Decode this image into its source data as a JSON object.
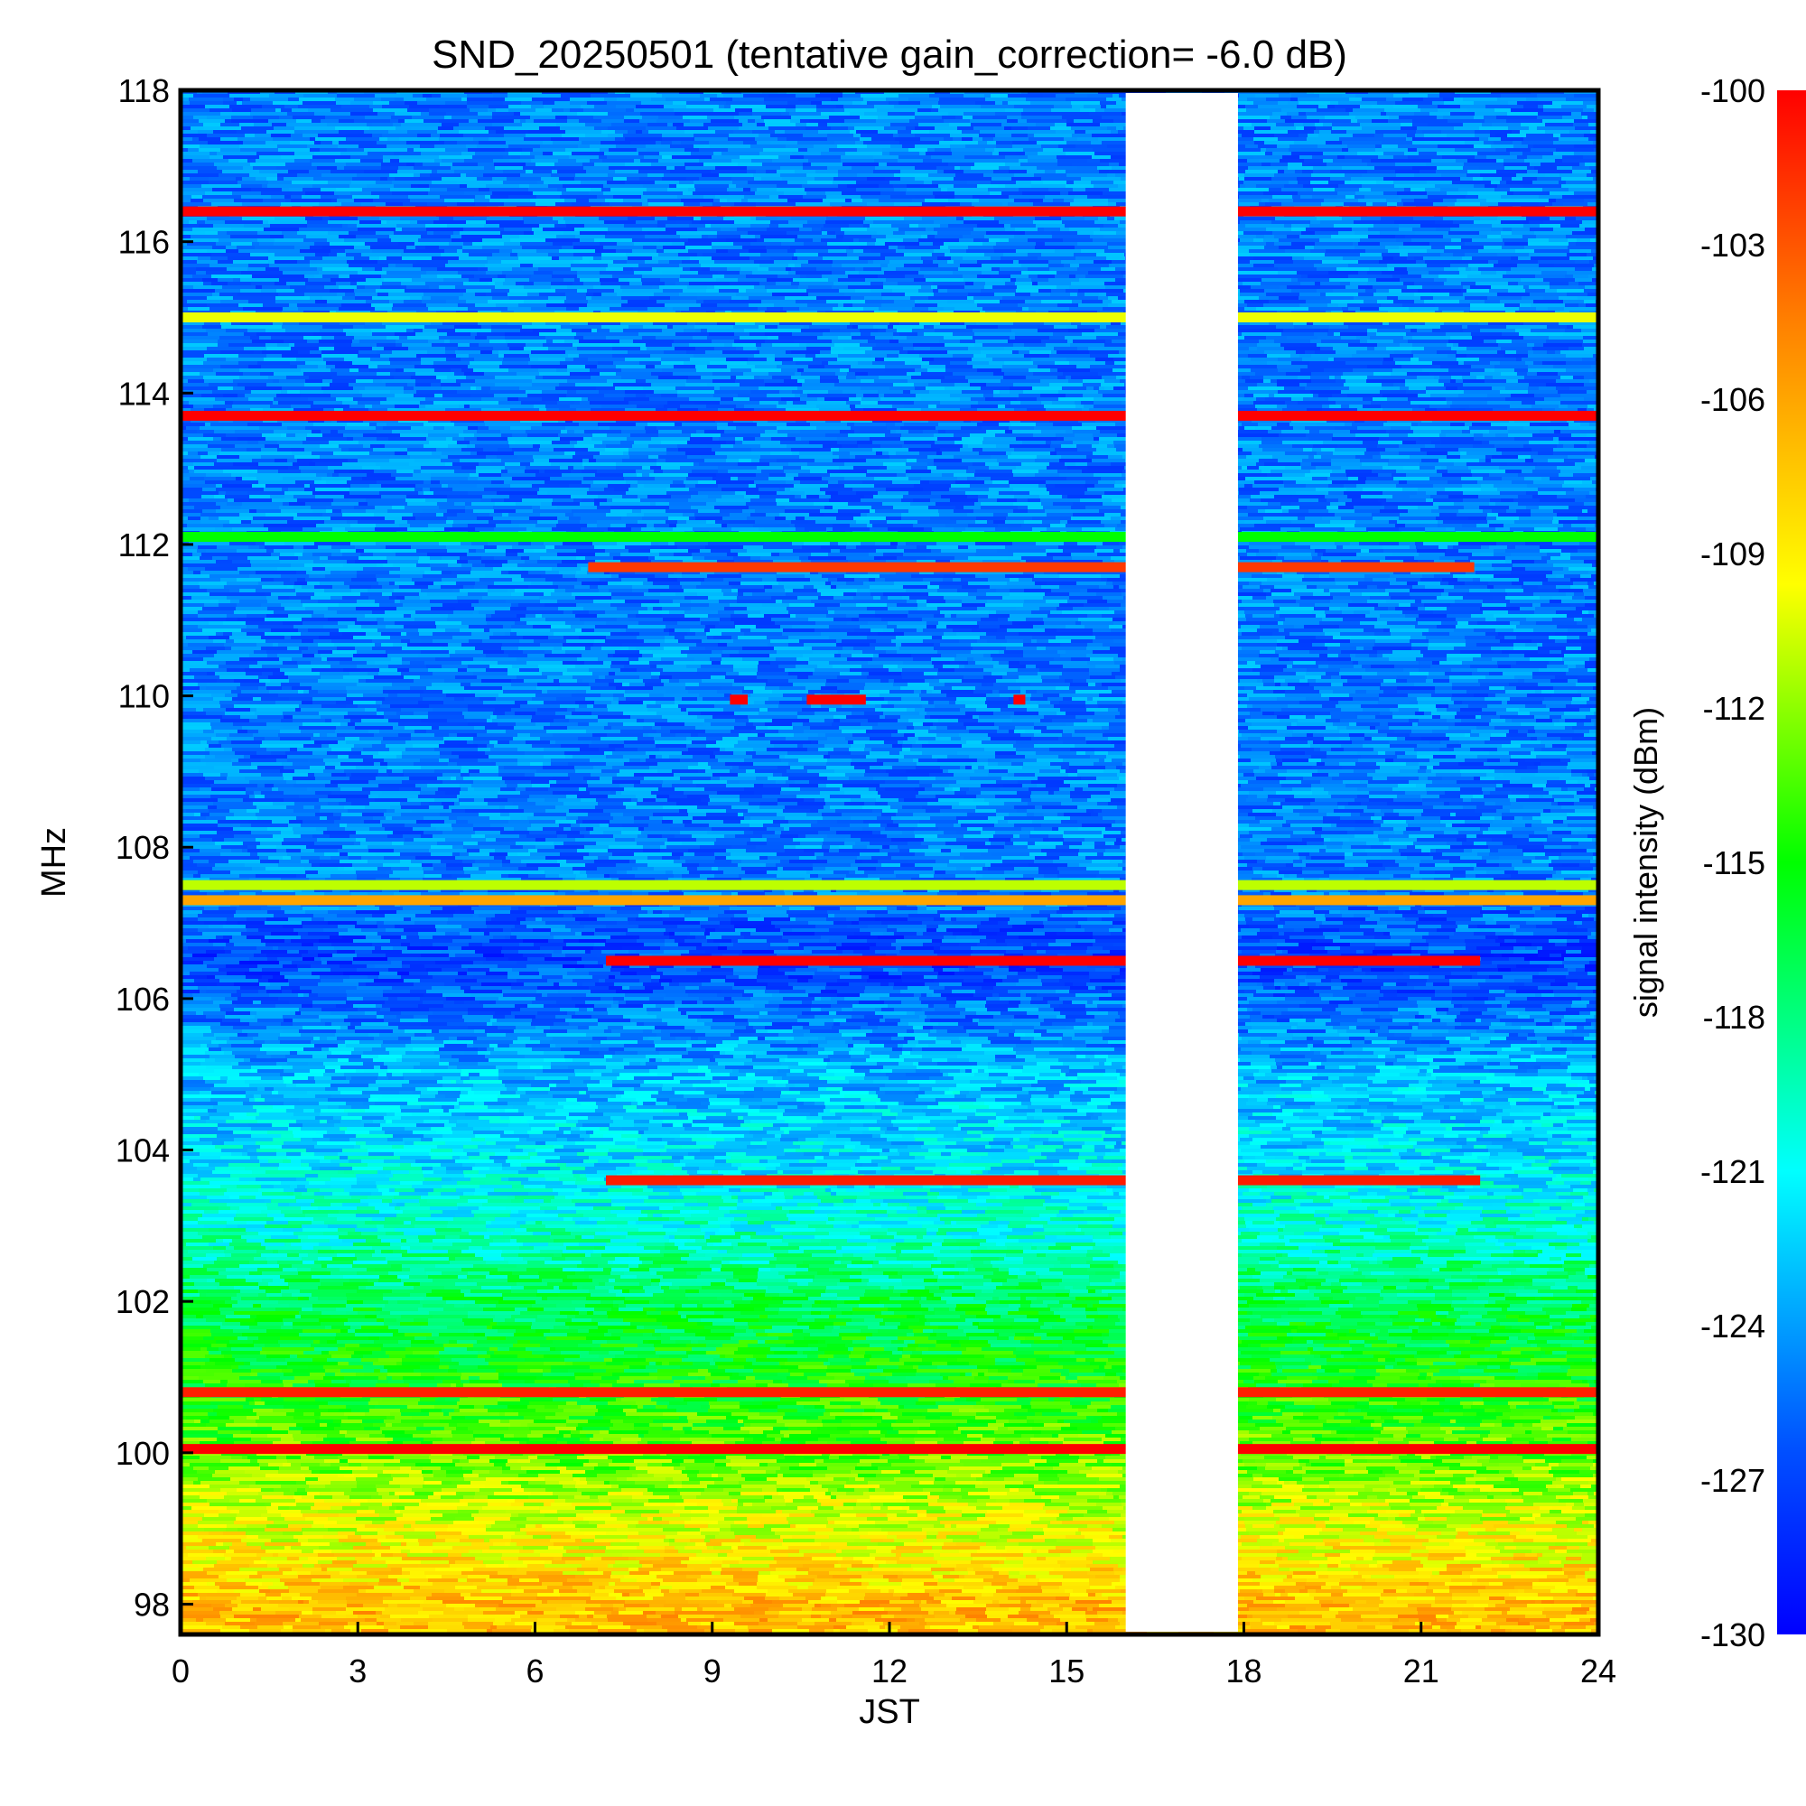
{
  "chart_data": {
    "type": "heatmap",
    "title": "SND_20250501 (tentative gain_correction= -6.0 dB)",
    "xlabel": "JST",
    "ylabel": "MHz",
    "colorbar_label": "signal intensity (dBm)",
    "xlim": [
      0,
      24
    ],
    "ylim": [
      97.6,
      118.0
    ],
    "x_ticks": [
      "0",
      "3",
      "6",
      "9",
      "12",
      "15",
      "18",
      "21",
      "24"
    ],
    "y_ticks": [
      "98",
      "100",
      "102",
      "104",
      "106",
      "108",
      "110",
      "112",
      "114",
      "116",
      "118"
    ],
    "colorbar_range": [
      -130,
      -100
    ],
    "colorbar_ticks": [
      "-100",
      "-103",
      "-106",
      "-109",
      "-112",
      "-115",
      "-118",
      "-121",
      "-124",
      "-127",
      "-130"
    ],
    "colormap": "jet",
    "data_gap_jst": [
      16.0,
      17.9
    ],
    "background_levels_dbm": [
      {
        "freq_mhz": 98.0,
        "level": -107
      },
      {
        "freq_mhz": 99.0,
        "level": -110
      },
      {
        "freq_mhz": 100.0,
        "level": -113
      },
      {
        "freq_mhz": 101.0,
        "level": -115
      },
      {
        "freq_mhz": 102.0,
        "level": -117
      },
      {
        "freq_mhz": 103.0,
        "level": -120
      },
      {
        "freq_mhz": 104.0,
        "level": -122
      },
      {
        "freq_mhz": 105.0,
        "level": -123
      },
      {
        "freq_mhz": 106.5,
        "level": -127
      },
      {
        "freq_mhz": 107.5,
        "level": -125
      },
      {
        "freq_mhz": 108.0,
        "level": -125
      },
      {
        "freq_mhz": 112.0,
        "level": -125
      },
      {
        "freq_mhz": 118.0,
        "level": -125
      }
    ],
    "signals": [
      {
        "freq_mhz": 116.4,
        "start_jst": 0,
        "end_jst": 24,
        "level": -100
      },
      {
        "freq_mhz": 115.0,
        "start_jst": 0,
        "end_jst": 24,
        "level": -110
      },
      {
        "freq_mhz": 113.7,
        "start_jst": 0,
        "end_jst": 24,
        "level": -100
      },
      {
        "freq_mhz": 112.1,
        "start_jst": 0,
        "end_jst": 24,
        "level": -115
      },
      {
        "freq_mhz": 111.7,
        "start_jst": 6.9,
        "end_jst": 21.9,
        "level": -102
      },
      {
        "freq_mhz": 109.95,
        "start_jst": 9.3,
        "end_jst": 9.6,
        "level": -100
      },
      {
        "freq_mhz": 109.95,
        "start_jst": 10.6,
        "end_jst": 11.6,
        "level": -100
      },
      {
        "freq_mhz": 109.95,
        "start_jst": 14.1,
        "end_jst": 14.3,
        "level": -100
      },
      {
        "freq_mhz": 107.3,
        "start_jst": 0,
        "end_jst": 24,
        "level": -106
      },
      {
        "freq_mhz": 107.5,
        "start_jst": 0,
        "end_jst": 24,
        "level": -111
      },
      {
        "freq_mhz": 106.5,
        "start_jst": 7.2,
        "end_jst": 22.0,
        "level": -100
      },
      {
        "freq_mhz": 103.6,
        "start_jst": 7.2,
        "end_jst": 22.0,
        "level": -101
      },
      {
        "freq_mhz": 100.8,
        "start_jst": 0,
        "end_jst": 24,
        "level": -101
      },
      {
        "freq_mhz": 100.05,
        "start_jst": 0,
        "end_jst": 24,
        "level": -100
      }
    ]
  }
}
